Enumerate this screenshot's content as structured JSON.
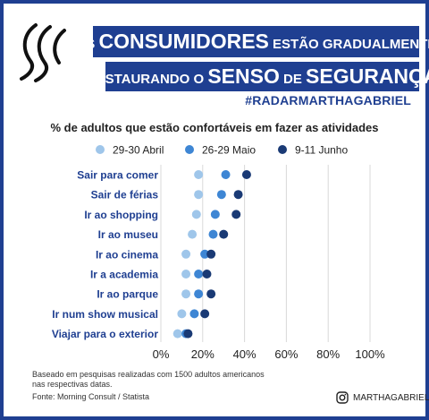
{
  "header": {
    "line1": [
      {
        "text": "OS ",
        "size": "small"
      },
      {
        "text": "CONSUMIDORES",
        "size": "big"
      },
      {
        "text": " ESTÃO GRADUALMENTE",
        "size": "small"
      }
    ],
    "line2": [
      {
        "text": "RESTAURANDO O ",
        "size": "small"
      },
      {
        "text": "SENSO",
        "size": "big"
      },
      {
        "text": " DE ",
        "size": "small"
      },
      {
        "text": "SEGURANÇA",
        "size": "big"
      }
    ],
    "hashtag": "#RADARMARTHAGABRIEL"
  },
  "footer": {
    "note_line1": "Baseado em pesquisas realizadas com 1500 adultos americanos",
    "note_line2": "nas respectivas datas.",
    "source": "Fonte: Morning Consult / Statista",
    "instagram_handle": "MARTHAGABRIEL"
  },
  "chart_data": {
    "type": "scatter",
    "title": "% de adultos que estão confortáveis em fazer as atividades",
    "categories": [
      "Sair para comer",
      "Sair de férias",
      "Ir ao shopping",
      "Ir ao museu",
      "Ir ao cinema",
      "Ir a academia",
      "Ir ao parque",
      "Ir num show musical",
      "Viajar para o exterior"
    ],
    "series": [
      {
        "name": "29-30 Abril",
        "color": "#9fc6ea",
        "values": [
          18,
          18,
          17,
          15,
          12,
          12,
          12,
          10,
          8
        ]
      },
      {
        "name": "26-29 Maio",
        "color": "#3e86d4",
        "values": [
          31,
          29,
          26,
          25,
          21,
          18,
          18,
          16,
          12
        ]
      },
      {
        "name": "9-11 Junho",
        "color": "#1a3a75",
        "values": [
          41,
          37,
          36,
          30,
          24,
          22,
          24,
          21,
          13
        ]
      }
    ],
    "xlim": [
      0,
      100
    ],
    "xticks": [
      "0%",
      "20%",
      "40%",
      "60%",
      "80%",
      "100%"
    ],
    "legend_position": "top",
    "grid": true
  }
}
